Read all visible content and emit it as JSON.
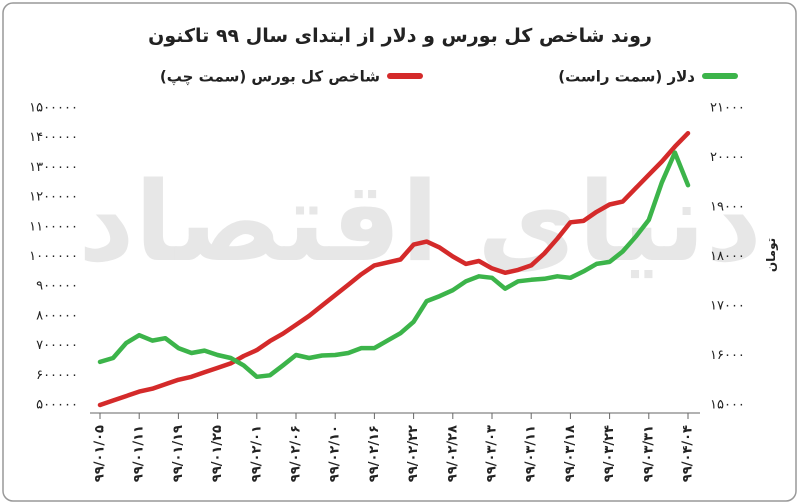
{
  "chart_data": {
    "type": "line",
    "title": "روند شاخص کل بورس و دلار از ابتدای سال ۹۹ تاکنون",
    "watermark": "دنیای اقتصاد",
    "y2label": "تومان",
    "categories": [
      "۹۹/۰۱/۰۵",
      null,
      null,
      "۹۹/۰۱/۱۱",
      null,
      null,
      "۹۹/۰۱/۱۹",
      null,
      null,
      "۹۹/۰۱/۲۵",
      null,
      null,
      "۹۹/۰۲/۰۱",
      null,
      null,
      "۹۹/۰۲/۰۶",
      null,
      null,
      "۹۹/۰۲/۱۰",
      null,
      null,
      "۹۹/۰۲/۱۶",
      null,
      null,
      "۹۹/۰۲/۲۲",
      null,
      null,
      "۹۹/۰۲/۲۸",
      null,
      null,
      "۹۹/۰۳/۰۳",
      null,
      null,
      "۹۹/۰۳/۱۱",
      null,
      null,
      "۹۹/۰۳/۱۸",
      null,
      null,
      "۹۹/۰۳/۲۴",
      null,
      null,
      "۹۹/۰۳/۳۱",
      null,
      null,
      "۹۹/۰۴/۰۴"
    ],
    "series": [
      {
        "name": "شاخص کل بورس (سمت چپ)",
        "color": "#d42a2a",
        "axis": "y",
        "values": [
          500000,
          515000,
          530000,
          545000,
          555000,
          570000,
          585000,
          595000,
          610000,
          625000,
          640000,
          665000,
          685000,
          715000,
          740000,
          770000,
          800000,
          835000,
          870000,
          905000,
          940000,
          970000,
          980000,
          990000,
          1040000,
          1050000,
          1030000,
          1000000,
          975000,
          985000,
          960000,
          945000,
          955000,
          970000,
          1010000,
          1060000,
          1115000,
          1120000,
          1150000,
          1175000,
          1185000,
          1230000,
          1275000,
          1320000,
          1370000,
          1415000
        ]
      },
      {
        "name": "دلار (سمت راست)",
        "color": "#3cb44a",
        "axis": "y2",
        "values": [
          15870,
          15950,
          16250,
          16410,
          16300,
          16350,
          16150,
          16050,
          16100,
          16010,
          15950,
          15800,
          15570,
          15600,
          15800,
          16010,
          15950,
          16000,
          16010,
          16050,
          16150,
          16150,
          16300,
          16450,
          16680,
          17100,
          17200,
          17320,
          17500,
          17600,
          17570,
          17350,
          17500,
          17530,
          17550,
          17600,
          17570,
          17700,
          17850,
          17890,
          18100,
          18400,
          18740,
          19500,
          20100,
          19440
        ]
      }
    ],
    "ylim": [
      500000,
      1500000
    ],
    "yticks": [
      {
        "value": 500000,
        "label": "۵۰۰۰۰۰"
      },
      {
        "value": 600000,
        "label": "۶۰۰۰۰۰"
      },
      {
        "value": 700000,
        "label": "۷۰۰۰۰۰"
      },
      {
        "value": 800000,
        "label": "۸۰۰۰۰۰"
      },
      {
        "value": 900000,
        "label": "۹۰۰۰۰۰"
      },
      {
        "value": 1000000,
        "label": "۱۰۰۰۰۰۰"
      },
      {
        "value": 1100000,
        "label": "۱۱۰۰۰۰۰"
      },
      {
        "value": 1200000,
        "label": "۱۲۰۰۰۰۰"
      },
      {
        "value": 1300000,
        "label": "۱۳۰۰۰۰۰"
      },
      {
        "value": 1400000,
        "label": "۱۴۰۰۰۰۰"
      },
      {
        "value": 1500000,
        "label": "۱۵۰۰۰۰۰"
      }
    ],
    "y2lim": [
      15000,
      21000
    ],
    "y2ticks": [
      {
        "value": 15000,
        "label": "۱۵۰۰۰"
      },
      {
        "value": 16000,
        "label": "۱۶۰۰۰"
      },
      {
        "value": 17000,
        "label": "۱۷۰۰۰"
      },
      {
        "value": 18000,
        "label": "۱۸۰۰۰"
      },
      {
        "value": 19000,
        "label": "۱۹۰۰۰"
      },
      {
        "value": 20000,
        "label": "۲۰۰۰۰"
      },
      {
        "value": 21000,
        "label": "۲۱۰۰۰"
      }
    ],
    "grid": false
  }
}
